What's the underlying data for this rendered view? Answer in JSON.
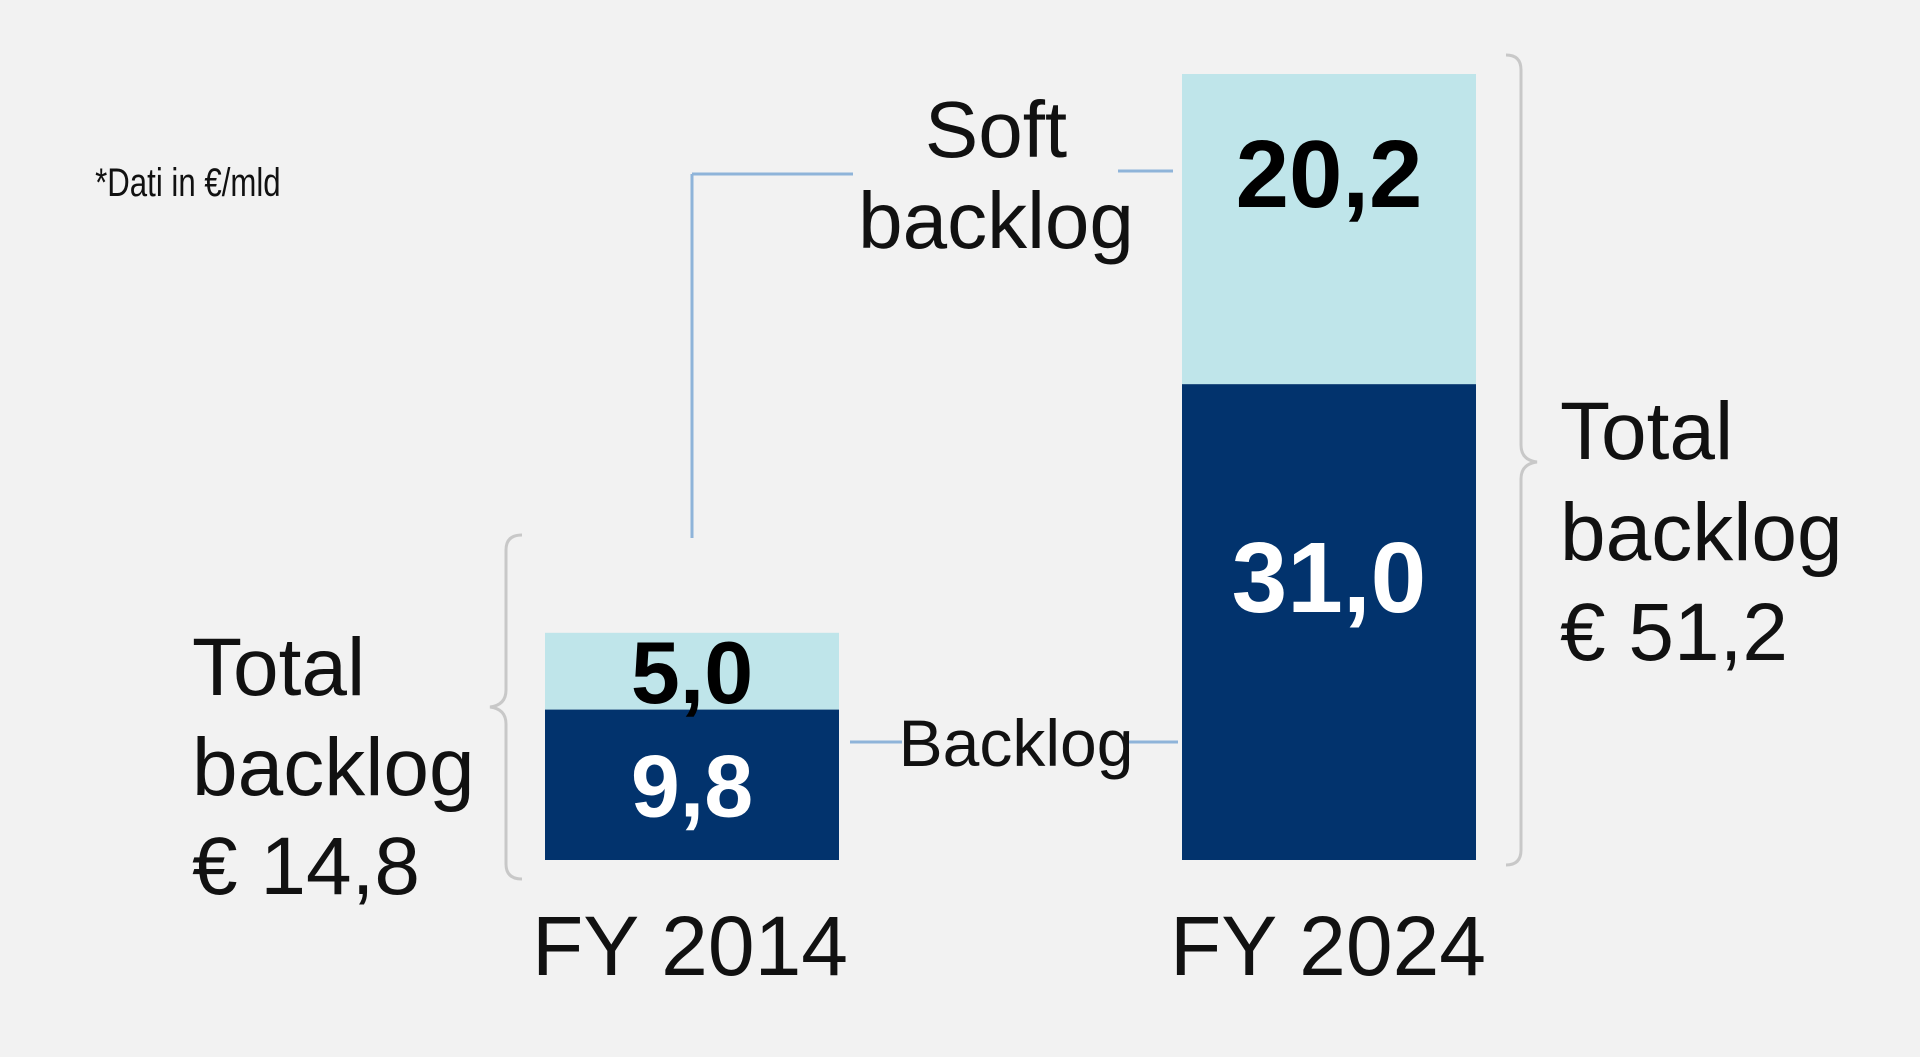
{
  "chart_data": {
    "type": "bar",
    "stacked": true,
    "note": "*Dati in €/mld",
    "categories": [
      "FY 2014",
      "FY 2024"
    ],
    "series": [
      {
        "name": "Backlog",
        "values": [
          9.8,
          31.0
        ],
        "labels": [
          "9,8",
          "31,0"
        ],
        "color": "#02336d",
        "label_color": "#ffffff"
      },
      {
        "name": "Soft backlog",
        "values": [
          5.0,
          20.2
        ],
        "labels": [
          "5,0",
          "20,2"
        ],
        "color": "#bfe5ea",
        "label_color": "#000000"
      }
    ],
    "series_labels": {
      "backlog": "Backlog",
      "soft_line1": "Soft",
      "soft_line2": "backlog"
    },
    "totals": [
      {
        "line1": "Total",
        "line2": "backlog",
        "line3": "€ 14,8"
      },
      {
        "line1": "Total",
        "line2": "backlog",
        "line3": "€ 51,2"
      }
    ],
    "colors": {
      "background": "#f2f2f2",
      "connector": "#8fb4d9",
      "bracket": "#c8c8c8"
    }
  }
}
